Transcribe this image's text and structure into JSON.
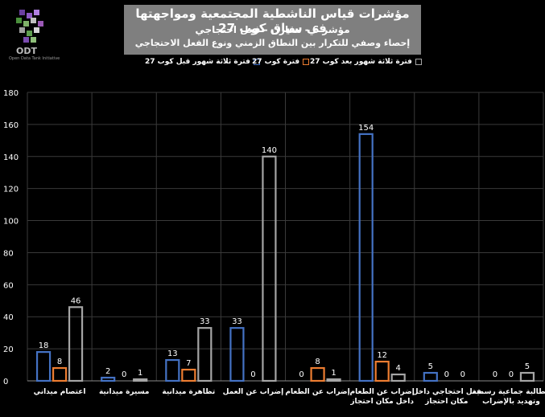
{
  "header": {
    "title": "مؤشرات قياس الناشطية المجتمعية ومواجهتها في سياق كوب 27",
    "subtitle1": "مؤشر 6 - مقارن - فعل احتجاجي",
    "subtitle2": "إحصاء وصفي للتكرار بين النطاق الزمني ونوع الفعل الاحتجاجي"
  },
  "logo": {
    "text": "ODT",
    "tagline": "Open Data Tank Initiative"
  },
  "colors": {
    "before": "#4472c4",
    "during": "#ed7d31",
    "after": "#a5a5a5"
  },
  "chart_data": {
    "type": "bar",
    "title": "مؤشرات قياس الناشطية المجتمعية ومواجهتها في سياق كوب 27",
    "categories": [
      "اعتصام ميداني",
      "مسيرة ميدانية",
      "تظاهرة ميدانية",
      "إضراب عن العمل",
      "إضراب عن الطعام",
      "إضراب عن الطعام داخل مكان احتجاز",
      "فعل احتجاجي داخل مكان احتجاز",
      "مطالبة جماعية رسمية وتهديد بالإضراب"
    ],
    "series": [
      {
        "name": "فترة ثلاثة شهور قبل كوب 27",
        "values": [
          18,
          2,
          13,
          33,
          0,
          154,
          5,
          0
        ]
      },
      {
        "name": "فترة كوب 27",
        "values": [
          8,
          0,
          7,
          0,
          8,
          12,
          0,
          0
        ]
      },
      {
        "name": "فترة ثلاثة شهور بعد كوب 27",
        "values": [
          46,
          1,
          33,
          140,
          1,
          4,
          0,
          5
        ]
      }
    ],
    "ylim": [
      0,
      180
    ],
    "yticks": [
      0,
      20,
      40,
      60,
      80,
      100,
      120,
      140,
      160,
      180
    ],
    "grid": true,
    "legend_position": "top"
  }
}
